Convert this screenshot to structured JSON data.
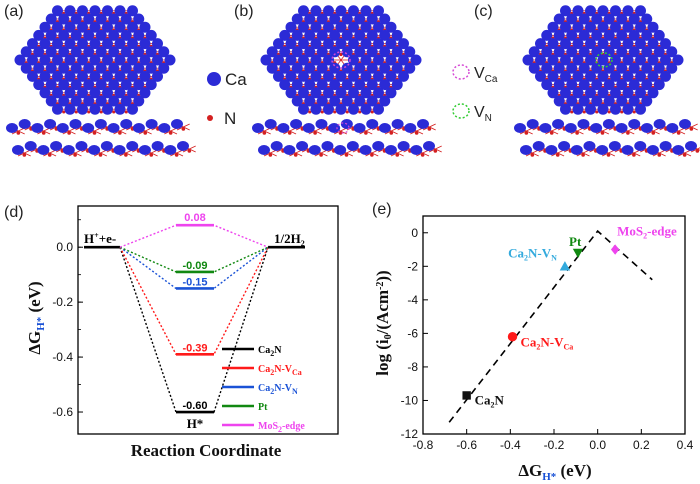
{
  "panels": {
    "a": "(a)",
    "b": "(b)",
    "c": "(c)",
    "d": "(d)",
    "e": "(e)"
  },
  "legend_top": {
    "ca": "Ca",
    "n": "N",
    "vca": "V",
    "vca_sub": "Ca",
    "vn": "V",
    "vn_sub": "N"
  },
  "colors": {
    "ca_atom": "#2b2bd6",
    "n_atom": "#d42020",
    "vca_ring": "#d64bd6",
    "vn_ring": "#33cc33",
    "ca2n": "#000000",
    "ca2n_vca": "#ff1a1a",
    "ca2n_vn": "#1a52d6",
    "pt": "#118811",
    "mos2": "#ee44ee",
    "ca2n_vn_e": "#33aadd"
  },
  "chart_data": [
    {
      "panel": "d",
      "type": "line",
      "title": "",
      "ylabel_main": "ΔG",
      "ylabel_sub": "H*",
      "ylabel_unit": " (eV)",
      "xlabel": "Reaction Coordinate",
      "ylim": [
        -0.68,
        0.15
      ],
      "yticks": [
        0.0,
        -0.2,
        -0.4,
        -0.6
      ],
      "ytick_labels": [
        "0.0",
        "-0.2",
        "-0.4",
        "-0.6"
      ],
      "states": {
        "start": "H",
        "start_sup": "+",
        "start_rest": "+e-",
        "mid": "H*",
        "end": "1/2H",
        "end_sub": "2"
      },
      "series": [
        {
          "name": "Ca2N",
          "label_main": "Ca",
          "label_sub": "2",
          "label_tail": "N",
          "tail_sub": "",
          "value": -0.6,
          "value_label": "-0.60",
          "color": "#000000"
        },
        {
          "name": "Ca2N-VCa",
          "label_main": "Ca",
          "label_sub": "2",
          "label_tail": "N-V",
          "tail_sub": "Ca",
          "value": -0.39,
          "value_label": "-0.39",
          "color": "#ff1a1a"
        },
        {
          "name": "Ca2N-VN",
          "label_main": "Ca",
          "label_sub": "2",
          "label_tail": "N-V",
          "tail_sub": "N",
          "value": -0.15,
          "value_label": "-0.15",
          "color": "#1a52d6"
        },
        {
          "name": "Pt",
          "label_main": "Pt",
          "label_sub": "",
          "label_tail": "",
          "tail_sub": "",
          "value": -0.09,
          "value_label": "-0.09",
          "color": "#118811"
        },
        {
          "name": "MoS2-edge",
          "label_main": "MoS",
          "label_sub": "2",
          "label_tail": "-edge",
          "tail_sub": "",
          "value": 0.08,
          "value_label": "0.08",
          "color": "#ee44ee"
        }
      ]
    },
    {
      "panel": "e",
      "type": "scatter",
      "title": "",
      "xlabel_main": "ΔG",
      "xlabel_sub": "H*",
      "xlabel_unit": " (eV)",
      "ylabel": "log (i",
      "ylabel_sub": "0",
      "ylabel_rest": "/(Acm",
      "ylabel_sup": "-2",
      "ylabel_end": "))",
      "xlim": [
        -0.8,
        0.4
      ],
      "ylim": [
        -12,
        1
      ],
      "xticks": [
        -0.8,
        -0.6,
        -0.4,
        -0.2,
        0.0,
        0.2,
        0.4
      ],
      "xtick_labels": [
        "-0.8",
        "-0.6",
        "-0.4",
        "-0.2",
        "0.0",
        "0.2",
        "0.4"
      ],
      "yticks": [
        0,
        -2,
        -4,
        -6,
        -8,
        -10,
        -12
      ],
      "ytick_labels": [
        "0",
        "-2",
        "-4",
        "-6",
        "-8",
        "-10",
        "-12"
      ],
      "volcano": [
        [
          -0.68,
          -11.3
        ],
        [
          0.0,
          0.1
        ],
        [
          0.25,
          -2.8
        ]
      ],
      "points": [
        {
          "name": "Ca2N",
          "x": -0.6,
          "y": -9.7,
          "label_main": "Ca",
          "label_sub": "2",
          "label_tail": "N",
          "tail_sub": "",
          "color": "#111111",
          "marker": "square"
        },
        {
          "name": "Ca2N-VCa",
          "x": -0.39,
          "y": -6.2,
          "label_main": "Ca",
          "label_sub": "2",
          "label_tail": "N-V",
          "tail_sub": "Ca",
          "color": "#ff1a1a",
          "marker": "circle"
        },
        {
          "name": "Ca2N-VN",
          "x": -0.15,
          "y": -2.0,
          "label_main": "Ca",
          "label_sub": "2",
          "label_tail": "N-V",
          "tail_sub": "N",
          "color": "#33aadd",
          "marker": "triangle"
        },
        {
          "name": "Pt",
          "x": -0.09,
          "y": -1.2,
          "label_main": "Pt",
          "label_sub": "",
          "label_tail": "",
          "tail_sub": "",
          "color": "#118811",
          "marker": "triangle-down"
        },
        {
          "name": "MoS2-edge",
          "x": 0.08,
          "y": -1.0,
          "label_main": "MoS",
          "label_sub": "2",
          "label_tail": "-edge",
          "tail_sub": "",
          "color": "#ee44ee",
          "marker": "diamond"
        }
      ]
    }
  ]
}
